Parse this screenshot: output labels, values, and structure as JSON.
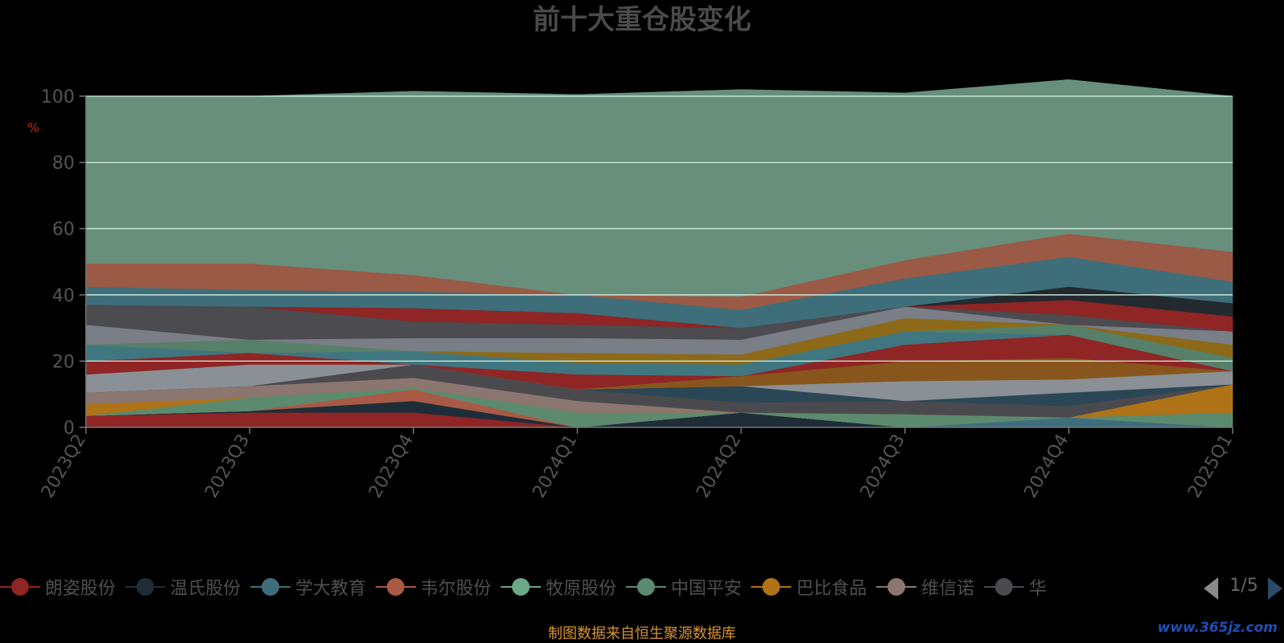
{
  "title": "前十大重仓股变化",
  "source_note": "制图数据来自恒生聚源数据库",
  "watermark": "www.365jz.com",
  "pager": {
    "page": "1/5"
  },
  "chart_data": {
    "type": "area",
    "stacked": true,
    "title": "前十大重仓股变化",
    "ylabel": "%",
    "ylim": [
      0,
      100
    ],
    "yticks": [
      0,
      20,
      40,
      60,
      80,
      100
    ],
    "grid": true,
    "legend_position": "bottom",
    "categories": [
      "2023Q2",
      "2023Q3",
      "2023Q4",
      "2024Q1",
      "2024Q2",
      "2024Q3",
      "2024Q4",
      "2025Q1"
    ],
    "series": [
      {
        "name": "朗姿股份",
        "color": "#8f2525",
        "values": [
          3.5,
          4.5,
          4.5,
          0,
          0,
          0,
          0,
          0
        ]
      },
      {
        "name": "温氏股份",
        "color": "#1f2d38",
        "values": [
          0,
          0.5,
          3.5,
          0,
          4.5,
          0,
          0,
          0
        ]
      },
      {
        "name": "学大教育",
        "color": "#3e6e7e",
        "values": [
          0,
          0,
          0,
          0,
          0,
          0,
          3.0,
          0
        ]
      },
      {
        "name": "韦尔股份",
        "color": "#a85a45",
        "values": [
          0,
          0,
          3.5,
          0,
          0,
          0,
          0,
          0
        ]
      },
      {
        "name": "牧原股份",
        "color": "#6aa887",
        "values": [
          0,
          0,
          0,
          0,
          0,
          0,
          0,
          0
        ]
      },
      {
        "name": "中国平安",
        "color": "#5c8a6e",
        "values": [
          0,
          4.0,
          0.5,
          4.5,
          0,
          4.0,
          0,
          4.5
        ]
      },
      {
        "name": "巴比食品",
        "color": "#b07318",
        "values": [
          3.5,
          0,
          0,
          0,
          0,
          0,
          0,
          8.5
        ]
      },
      {
        "name": "维信诺",
        "color": "#8c7670",
        "values": [
          3.5,
          3.5,
          3.0,
          3.5,
          0,
          0,
          0,
          0
        ]
      },
      {
        "name": "华",
        "color": "#4a4a4e",
        "values": [
          0,
          0,
          4.0,
          3.5,
          3.0,
          4.0,
          3.5,
          0
        ]
      },
      {
        "name": "",
        "color": "#2b4756",
        "values": [
          0,
          0,
          0,
          0,
          5.0,
          0,
          4.0,
          0
        ]
      },
      {
        "name": "",
        "color": "#8a9096",
        "values": [
          5.5,
          6.5,
          0,
          0,
          0,
          6.0,
          4.0,
          4.0
        ]
      },
      {
        "name": "",
        "color": "#88561c",
        "values": [
          0,
          0,
          0,
          0,
          3.0,
          6.0,
          6.5,
          0
        ]
      },
      {
        "name": "",
        "color": "#8f2525",
        "values": [
          4.0,
          3.5,
          0,
          4.5,
          0,
          5.0,
          7.0,
          0
        ]
      },
      {
        "name": "",
        "color": "#3f7680",
        "values": [
          5.0,
          0,
          4.0,
          3.5,
          3.5,
          4.0,
          0,
          0
        ]
      },
      {
        "name": "",
        "color": "#56806a",
        "values": [
          0,
          4.0,
          0,
          0,
          0,
          0,
          3.0,
          4.0
        ]
      },
      {
        "name": "",
        "color": "#8c6a1a",
        "values": [
          0,
          0,
          0,
          3.0,
          3.0,
          4.0,
          0,
          4.0
        ]
      },
      {
        "name": "",
        "color": "#7a7e86",
        "values": [
          6.0,
          0,
          4.0,
          4.5,
          4.5,
          3.5,
          0,
          4.0
        ]
      },
      {
        "name": "",
        "color": "#4b4b50",
        "values": [
          6.0,
          10.0,
          5.0,
          4.0,
          3.5,
          0,
          3.0,
          0
        ]
      },
      {
        "name": "",
        "color": "#8f2525",
        "values": [
          0,
          0,
          4.0,
          3.5,
          0,
          0,
          4.5,
          4.5
        ]
      },
      {
        "name": "",
        "color": "#222a30",
        "values": [
          0,
          0,
          0,
          0,
          0,
          0,
          4.0,
          4.0
        ]
      },
      {
        "name": "",
        "color": "#3e6e7a",
        "values": [
          5.5,
          5.0,
          5.0,
          5.5,
          5.5,
          8.5,
          9.0,
          6.5
        ]
      },
      {
        "name": "",
        "color": "#9a5a45",
        "values": [
          7.0,
          8.0,
          5.0,
          0,
          4.0,
          5.5,
          7.0,
          9.0
        ]
      },
      {
        "name": "",
        "color": "#678f7c",
        "values": [
          50.5,
          50.5,
          55.5,
          60.5,
          62.5,
          50.5,
          46.5,
          47.0
        ]
      }
    ]
  }
}
